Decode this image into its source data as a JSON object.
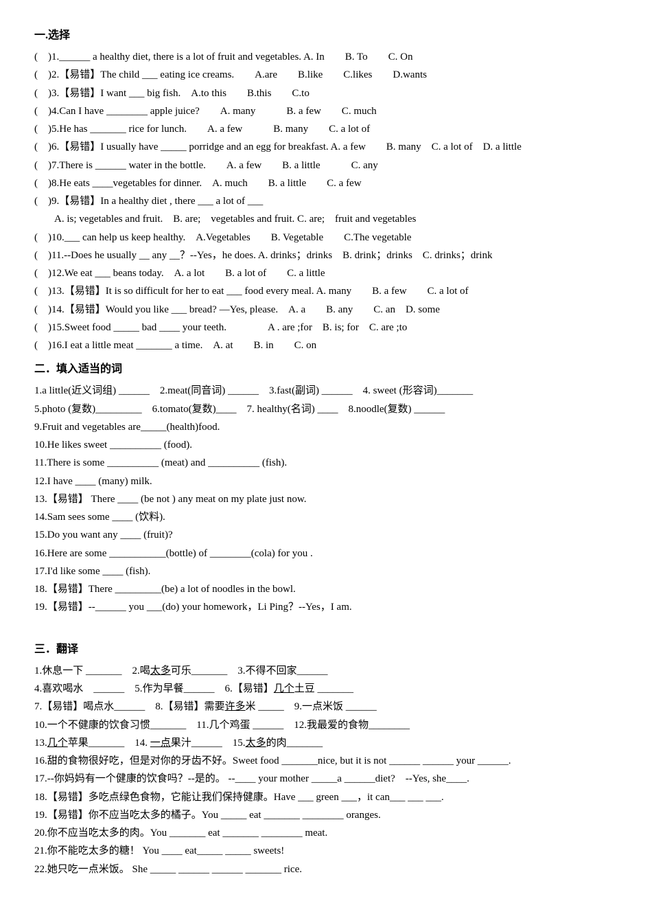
{
  "section1": {
    "title": "一.选择",
    "items": [
      "(　)1.______ a healthy diet, there is a lot of fruit and vegetables. A. In　　B. To　　C. On",
      "(　)2.【易错】The child ___ eating ice creams.　　A.are　　B.like　　C.likes　　D.wants",
      "(　)3.【易错】I want ___ big fish.　A.to this　　B.this　　C.to",
      "(　)4.Can I have ________ apple juice?　　A. many　　　B. a few　　C. much",
      "(　)5.He has _______ rice for lunch.　　A. a few　　　B. many　　C. a lot of",
      "(　)6.【易错】I usually have _____ porridge and an egg for breakfast. A. a few　　B. many　C. a lot of　D. a little",
      "(　)7.There is ______ water in the bottle.　　A. a few　　B. a little　　　C. any",
      "(　)8.He eats ____vegetables for dinner.　A. much　　B. a little　　C. a few",
      "(　)9.【易错】In a healthy diet , there ___ a lot of ___",
      "　A. is; vegetables and fruit.　B. are;　vegetables and fruit. C. are;　fruit and vegetables",
      "(　)10.___ can help us keep healthy.　A.Vegetables　　B. Vegetable　　C.The vegetable",
      "(　)11.--Does he usually __ any __？--Yes，he does. A. drinks；drinks　B. drink；drinks　C. drinks；drink",
      "(　)12.We eat ___ beans today.　A. a lot　　B. a lot of　　C. a little",
      "(　)13.【易错】It is so difficult for her to eat ___ food every meal. A. many　　B. a few　　C. a lot of",
      "(　)14.【易错】Would you like ___ bread? —Yes, please.　A. a　　B. any　　C. an　D. some",
      "(　)15.Sweet food _____ bad ____ your teeth.　　　　A . are ;for　B. is; for　C. are ;to",
      "(　)16.I eat a little meat _______ a time.　A. at　　B. in　　C. on"
    ]
  },
  "section2": {
    "title": "二．填入适当的词",
    "items": [
      "1.a little(近义词组) ______　2.meat(同音词) ______　3.fast(副词) ______　4. sweet (形容词)_______",
      "5.photo (复数)_________　6.tomato(复数)____　7. healthy(名词) ____　8.noodle(复数) ______",
      "9.Fruit and vegetables are_____(health)food.",
      "10.He likes sweet __________ (food).",
      "11.There is some __________ (meat) and __________ (fish).",
      "12.I have ____ (many) milk.",
      "13.【易错】 There ____ (be not ) any meat on my plate just now.",
      "14.Sam sees some ____ (饮料).",
      "15.Do you want any ____ (fruit)?",
      "16.Here are some ___________(bottle) of ________(cola) for you .",
      "17.I'd like some ____ (fish).",
      "18.【易错】There _________(be) a lot of noodles in the bowl.",
      "19.【易错】--______ you ___(do) your homework，Li Ping？--Yes，I am."
    ]
  },
  "section3": {
    "title": "三．翻译",
    "items": [
      "1.休息一下 _______　2.喝<u>太多</u>可乐_______　3.不得不回家______",
      "4.喜欢喝水　______　5.作为早餐______　6.【易错】<u>几个</u>土豆 _______",
      "7.【易错】喝点水______　8.【易错】需要<u>许多</u>米 _____　9.一点米饭 ______",
      "10.一个不健康的饮食习惯_______　11.几个鸡蛋 ______　12.我最爱的食物________",
      "13.<u>几个</u>苹果_______　14. <u>一点</u>果汁______　15.<u>太多</u>的肉_______",
      "16.甜的食物很好吃，但是对你的牙齿不好。Sweet food _______nice, but it is not ______ ______ your ______.",
      "17.--你妈妈有一个健康的饮食吗？--是的。 --____ your mother _____a ______diet?　--Yes, she____.",
      "18.【易错】多吃点绿色食物，它能让我们保持健康。Have ___ green ___，it can___ ___ ___.",
      "19.【易错】你不应当吃太多的橘子。You _____ eat _______ ________ oranges.",
      "20.你不应当吃太多的肉。You _______ eat _______ ________ meat.",
      "21.你不能吃太多的糖！ You ____ eat_____ _____ sweets!",
      "22.她只吃一点米饭。 She _____ ______ ______ _______ rice."
    ]
  }
}
